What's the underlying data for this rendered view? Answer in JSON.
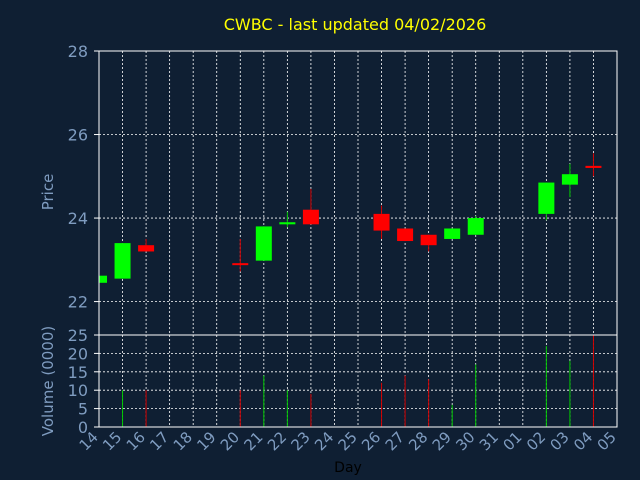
{
  "colors": {
    "background": "#0f1f33",
    "title": "#ffff00",
    "axis_text": "#7f9cc0",
    "xlabel": "#000000",
    "frame": "#ffffff",
    "grid": "#ffffff",
    "up": "#00ff00",
    "down": "#ff0000",
    "wick_up": "#00c800",
    "wick_down": "#d00000"
  },
  "chart_data": {
    "type": "candlestick",
    "title": "CWBC - last updated 04/02/2026",
    "xlabel": "Day",
    "price_panel": {
      "ylabel": "Price",
      "ylim": [
        21.2,
        28
      ],
      "yticks": [
        22,
        24,
        26,
        28
      ],
      "grid": true
    },
    "volume_panel": {
      "ylabel": "Volume (0000)",
      "ylim": [
        0,
        25
      ],
      "yticks": [
        0,
        5,
        10,
        15,
        20,
        25
      ],
      "grid": true
    },
    "x_tick_labels": [
      "14",
      "15",
      "16",
      "17",
      "18",
      "19",
      "20",
      "21",
      "22",
      "23",
      "24",
      "25",
      "26",
      "27",
      "28",
      "29",
      "30",
      "31",
      "01",
      "02",
      "03",
      "04",
      "05"
    ],
    "candles": [
      {
        "day": "14",
        "open": 22.45,
        "close": 22.62,
        "high": 22.62,
        "low": 22.45,
        "volume": 0
      },
      {
        "day": "15",
        "open": 22.55,
        "close": 23.4,
        "high": 23.4,
        "low": 22.55,
        "volume": 10
      },
      {
        "day": "16",
        "open": 23.35,
        "close": 23.2,
        "high": 23.5,
        "low": 23.2,
        "volume": 10
      },
      {
        "day": "20",
        "open": 22.92,
        "close": 22.88,
        "high": 23.5,
        "low": 22.72,
        "volume": 10
      },
      {
        "day": "21",
        "open": 22.98,
        "close": 23.8,
        "high": 23.8,
        "low": 22.98,
        "volume": 14
      },
      {
        "day": "22",
        "open": 23.85,
        "close": 23.9,
        "high": 24.15,
        "low": 23.78,
        "volume": 10
      },
      {
        "day": "23",
        "open": 24.2,
        "close": 23.85,
        "high": 24.7,
        "low": 23.85,
        "volume": 9
      },
      {
        "day": "26",
        "open": 24.1,
        "close": 23.7,
        "high": 24.3,
        "low": 23.5,
        "volume": 12
      },
      {
        "day": "27",
        "open": 23.75,
        "close": 23.45,
        "high": 23.75,
        "low": 23.45,
        "volume": 14
      },
      {
        "day": "28",
        "open": 23.6,
        "close": 23.35,
        "high": 23.6,
        "low": 23.2,
        "volume": 13
      },
      {
        "day": "29",
        "open": 23.5,
        "close": 23.75,
        "high": 23.75,
        "low": 23.5,
        "volume": 6
      },
      {
        "day": "30",
        "open": 23.6,
        "close": 24.0,
        "high": 24.05,
        "low": 23.6,
        "volume": 17
      },
      {
        "day": "02",
        "open": 24.1,
        "close": 24.85,
        "high": 24.85,
        "low": 23.95,
        "volume": 22
      },
      {
        "day": "03",
        "open": 24.8,
        "close": 25.05,
        "high": 25.3,
        "low": 24.5,
        "volume": 18
      },
      {
        "day": "04",
        "open": 25.25,
        "close": 25.2,
        "high": 25.55,
        "low": 25.0,
        "volume": 25
      }
    ]
  }
}
